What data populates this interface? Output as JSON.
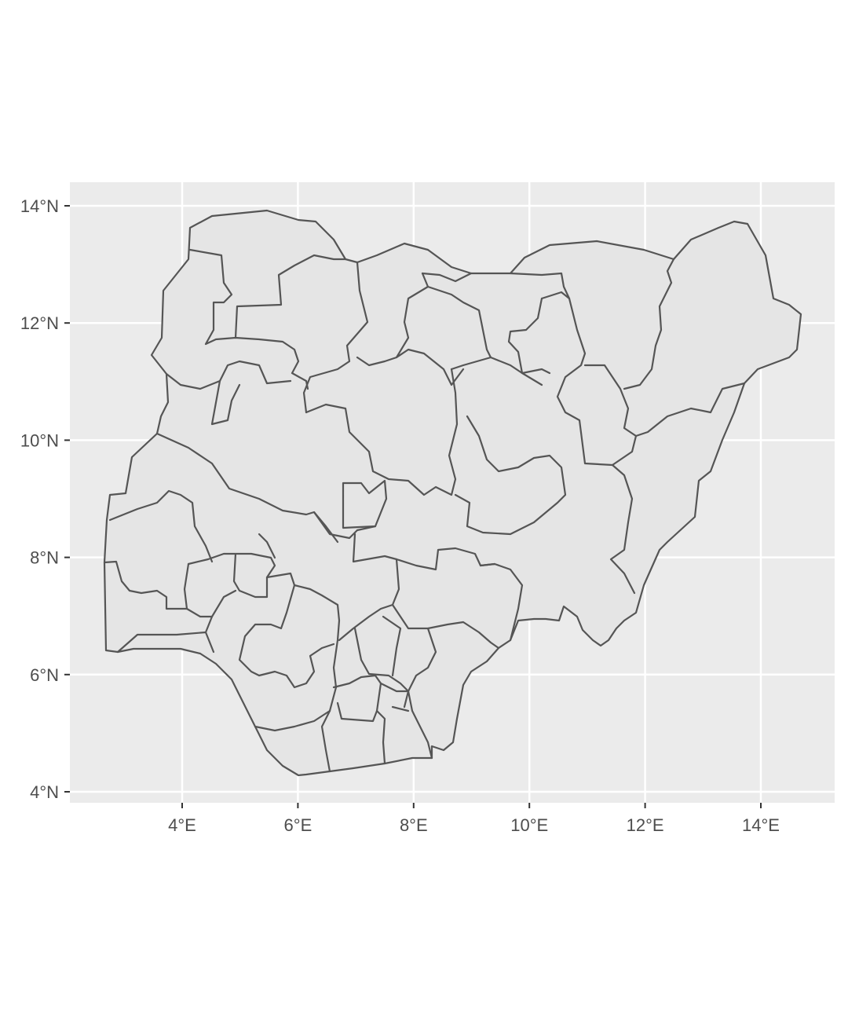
{
  "map": {
    "panel_background": "#ebebeb",
    "land_fill": "#e5e5e5",
    "boundary_color": "#555555",
    "grid_color": "#ffffff",
    "x_ticks": [
      {
        "value": 4,
        "label": "4°E"
      },
      {
        "value": 6,
        "label": "6°E"
      },
      {
        "value": 8,
        "label": "8°E"
      },
      {
        "value": 10,
        "label": "10°E"
      },
      {
        "value": 12,
        "label": "12°E"
      },
      {
        "value": 14,
        "label": "14°E"
      }
    ],
    "y_ticks": [
      {
        "value": 4,
        "label": "4°N"
      },
      {
        "value": 6,
        "label": "6°N"
      },
      {
        "value": 8,
        "label": "8°N"
      },
      {
        "value": 10,
        "label": "10°N"
      },
      {
        "value": 12,
        "label": "12°N"
      },
      {
        "value": 14,
        "label": "14°N"
      }
    ],
    "lon_range": [
      2.07,
      15.25
    ],
    "lat_range": [
      3.8,
      14.4
    ],
    "grid": true
  }
}
